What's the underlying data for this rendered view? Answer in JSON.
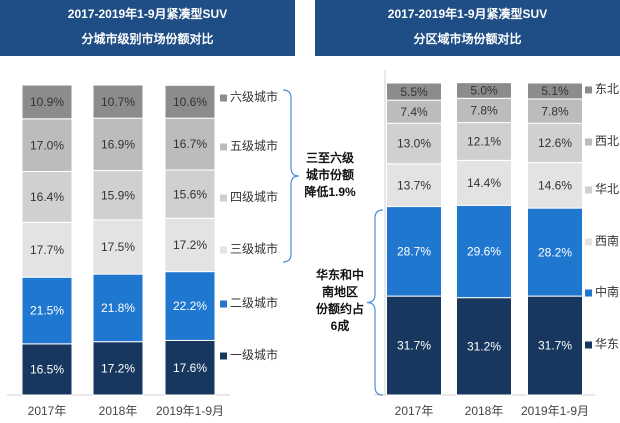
{
  "chart_data": [
    {
      "type": "stacked_bar",
      "title": [
        "2017-2019年1-9月紧凑型SUV",
        "分城市级别市场份额对比"
      ],
      "categories": [
        "2017年",
        "2018年",
        "2019年1-9月"
      ],
      "ylim": [
        0,
        100
      ],
      "series": [
        {
          "name": "一级城市",
          "color": "#17375e",
          "values": [
            16.5,
            17.2,
            17.6
          ],
          "value_labels": [
            "16.5%",
            "17.2%",
            "17.6%"
          ]
        },
        {
          "name": "二级城市",
          "color": "#1f77d0",
          "values": [
            21.5,
            21.8,
            22.2
          ],
          "value_labels": [
            "21.5%",
            "21.8%",
            "22.2%"
          ]
        },
        {
          "name": "三级城市",
          "color": "#e3e3e3",
          "values": [
            17.7,
            17.5,
            17.2
          ],
          "value_labels": [
            "17.7%",
            "17.5%",
            "17.2%"
          ]
        },
        {
          "name": "四级城市",
          "color": "#d0d0d0",
          "values": [
            16.4,
            15.9,
            15.6
          ],
          "value_labels": [
            "16.4%",
            "15.9%",
            "15.6%"
          ]
        },
        {
          "name": "五级城市",
          "color": "#bcbcbc",
          "values": [
            17.0,
            16.9,
            16.7
          ],
          "value_labels": [
            "17.0%",
            "16.9%",
            "16.7%"
          ]
        },
        {
          "name": "六级城市",
          "color": "#8c8c8c",
          "values": [
            10.9,
            10.7,
            10.6
          ],
          "value_labels": [
            "10.9%",
            "10.7%",
            "10.6%"
          ]
        }
      ],
      "annotation": [
        "三至六级",
        "城市份额",
        "降低1.9%"
      ]
    },
    {
      "type": "stacked_bar",
      "title": [
        "2017-2019年1-9月紧凑型SUV",
        "分区域市场份额对比"
      ],
      "categories": [
        "2017年",
        "2018年",
        "2019年1-9月"
      ],
      "ylim": [
        0,
        100
      ],
      "series": [
        {
          "name": "华东",
          "color": "#17375e",
          "values": [
            31.7,
            31.2,
            31.7
          ],
          "value_labels": [
            "31.7%",
            "31.2%",
            "31.7%"
          ]
        },
        {
          "name": "中南",
          "color": "#1f77d0",
          "values": [
            28.7,
            29.6,
            28.2
          ],
          "value_labels": [
            "28.7%",
            "29.6%",
            "28.2%"
          ]
        },
        {
          "name": "西南",
          "color": "#e3e3e3",
          "values": [
            13.7,
            14.4,
            14.6
          ],
          "value_labels": [
            "13.7%",
            "14.4%",
            "14.6%"
          ]
        },
        {
          "name": "华北",
          "color": "#d0d0d0",
          "values": [
            13.0,
            12.1,
            12.6
          ],
          "value_labels": [
            "13.0%",
            "12.1%",
            "12.6%"
          ]
        },
        {
          "name": "西北",
          "color": "#bcbcbc",
          "values": [
            7.4,
            7.8,
            7.8
          ],
          "value_labels": [
            "7.4%",
            "7.8%",
            "7.8%"
          ]
        },
        {
          "name": "东北",
          "color": "#8c8c8c",
          "values": [
            5.5,
            5.0,
            5.1
          ],
          "value_labels": [
            "5.5%",
            "5.0%",
            "5.1%"
          ]
        }
      ],
      "annotation": [
        "华东和中",
        "南地区",
        "份额约占",
        "6成"
      ]
    }
  ]
}
